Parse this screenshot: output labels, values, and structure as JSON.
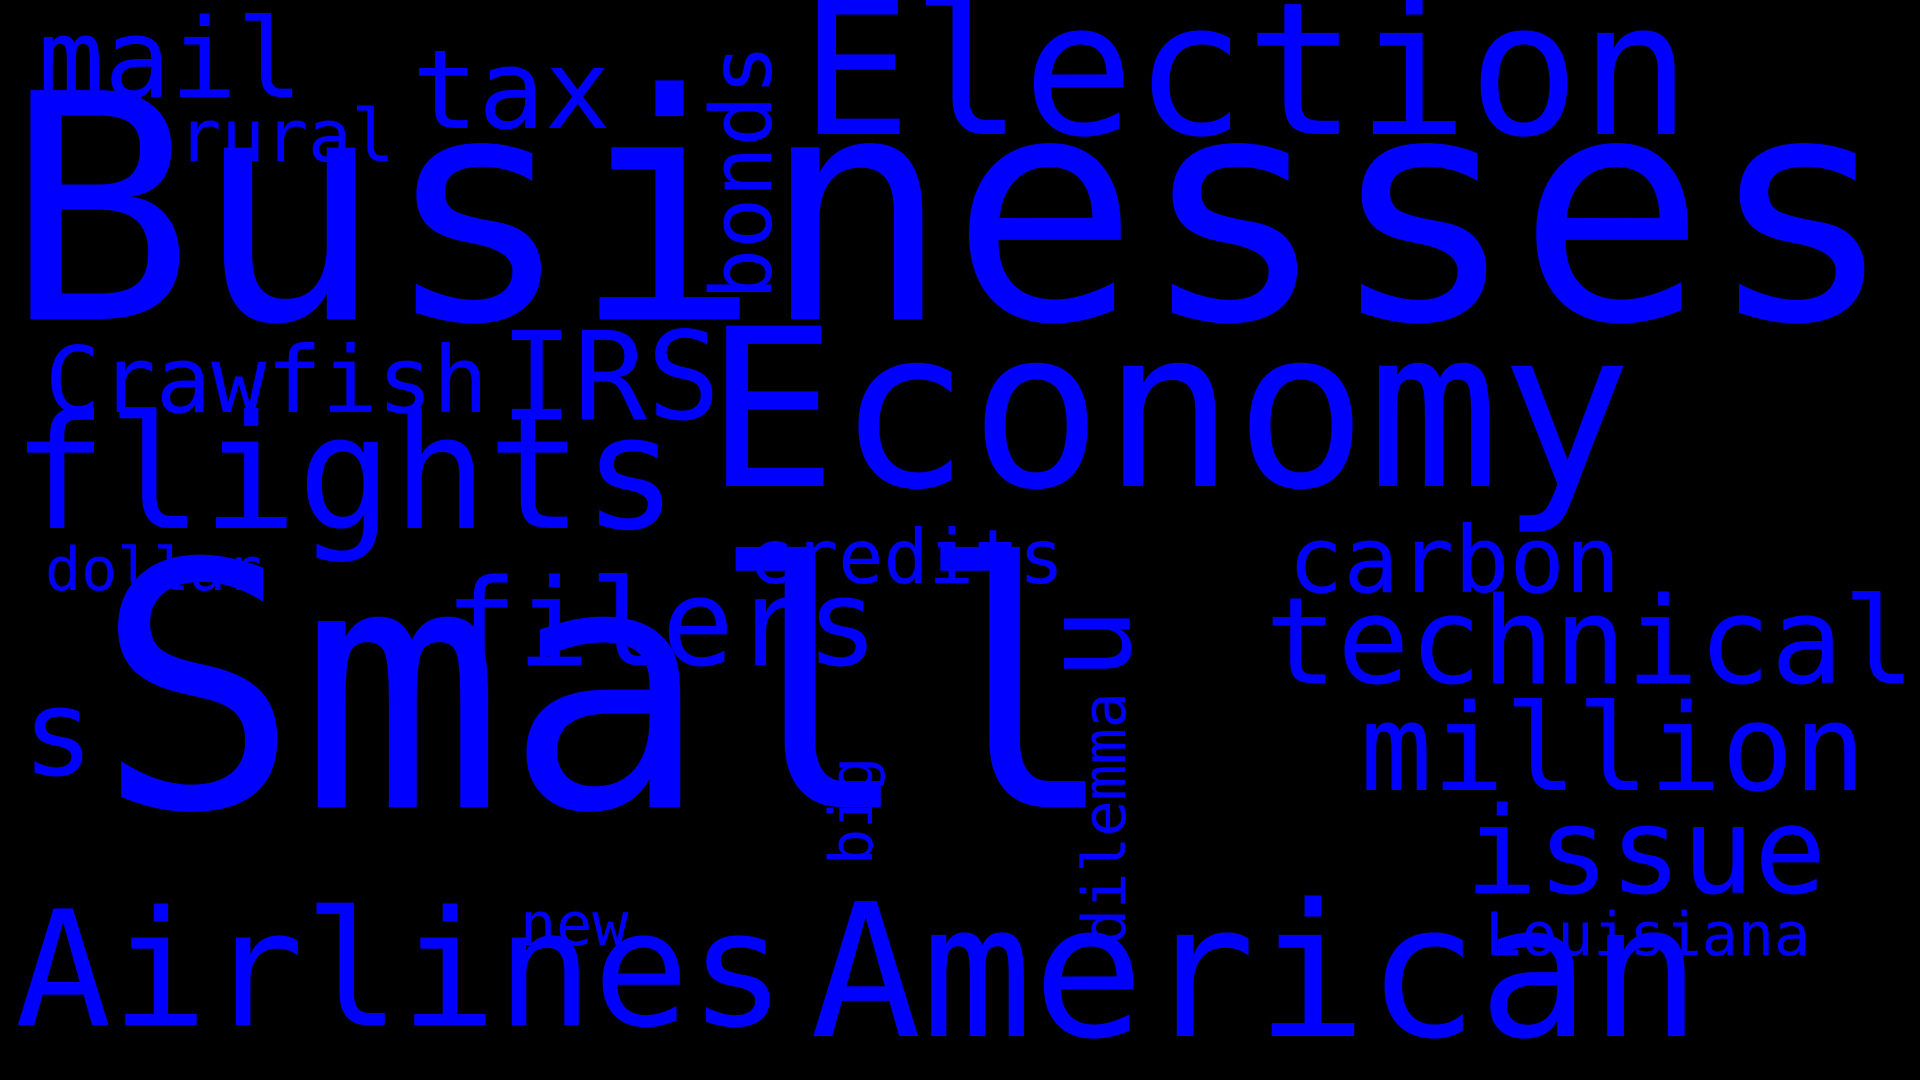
{
  "style": {
    "background": "#000000",
    "word_color": "#0000ff"
  },
  "words": {
    "small": "Small",
    "businesses": "Businesses",
    "economy": "Economy",
    "election": "Election",
    "american": "American",
    "airlines": "Airlines",
    "flights": "flights",
    "technical": "technical",
    "million": "million",
    "issue": "issue",
    "filers": "filers",
    "carbon": "carbon",
    "credits": "credits",
    "crawfish": "Crawfish",
    "irs": "IRS",
    "mail": "mail",
    "tax": "tax",
    "rural": "rural",
    "bonds": "bonds",
    "dollar": "dollar",
    "s": "s",
    "u": "u",
    "new": "new",
    "louisiana": "Louisiana",
    "big": "big",
    "dilemma": "dilemma"
  }
}
